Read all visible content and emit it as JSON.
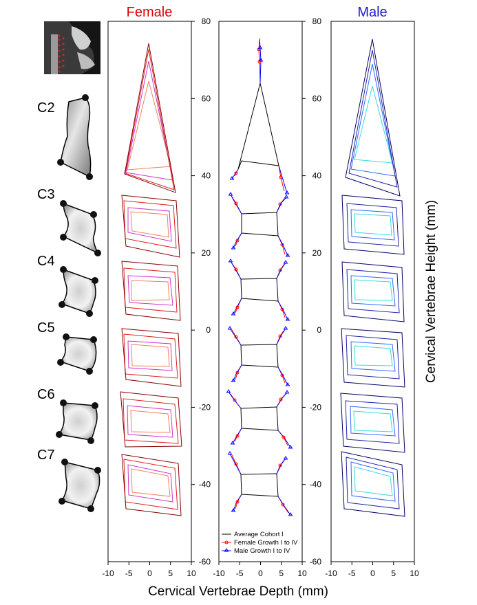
{
  "titles": {
    "female": "Female",
    "male": "Male"
  },
  "axes": {
    "xlabel": "Cervical Vertebrae Depth (mm)",
    "ylabel": "Cervical Vertebrae Height (mm)",
    "x_ticks": [
      "-10",
      "-5",
      "0",
      "5",
      "10"
    ],
    "y_ticks": [
      "80",
      "60",
      "40",
      "20",
      "0",
      "-20",
      "-40",
      "-60"
    ],
    "xlim": [
      -10,
      10
    ],
    "ylim": [
      -60,
      80
    ]
  },
  "vertebra_labels": [
    "C2",
    "C3",
    "C4",
    "C5",
    "C6",
    "C7"
  ],
  "legend": {
    "average": "Average Cohort I",
    "female": "Female Growth I to IV",
    "male": "Male Growth I to IV"
  },
  "colors": {
    "female_shades": [
      "#f08060",
      "#cc33cc",
      "#dd2222",
      "#880000"
    ],
    "male_shades": [
      "#33dddd",
      "#3366ff",
      "#2222aa",
      "#000066"
    ],
    "average": "#000000",
    "female_marker": "#ff0000",
    "male_marker": "#0000ff"
  },
  "chart_data": {
    "type": "line",
    "panels": [
      "female",
      "average-growth",
      "male"
    ],
    "average_cohort_i": [
      {
        "name": "C2",
        "points": [
          [
            -5.5,
            42
          ],
          [
            0,
            63
          ],
          [
            5,
            42
          ],
          [
            -5,
            43
          ]
        ]
      },
      {
        "name": "C3",
        "points": [
          [
            -5,
            30
          ],
          [
            4.5,
            30
          ],
          [
            5,
            24
          ],
          [
            -5,
            24
          ]
        ]
      },
      {
        "name": "C4",
        "points": [
          [
            -5,
            13
          ],
          [
            4.5,
            13
          ],
          [
            5,
            8
          ],
          [
            -5,
            8
          ]
        ]
      },
      {
        "name": "C5",
        "points": [
          [
            -5,
            -4
          ],
          [
            4.5,
            -4
          ],
          [
            5,
            -9
          ],
          [
            -5,
            -9
          ]
        ]
      },
      {
        "name": "C6",
        "points": [
          [
            -5,
            -20
          ],
          [
            4.5,
            -20
          ],
          [
            5,
            -26
          ],
          [
            -5,
            -26
          ]
        ]
      },
      {
        "name": "C7",
        "points": [
          [
            -5,
            -37
          ],
          [
            4.5,
            -37
          ],
          [
            5,
            -43
          ],
          [
            -5,
            -43
          ]
        ]
      }
    ]
  }
}
